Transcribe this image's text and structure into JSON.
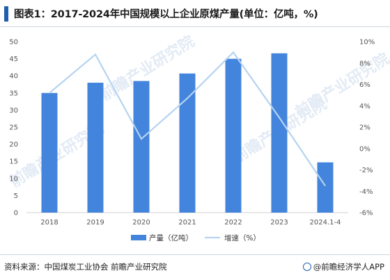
{
  "header": {
    "title": "图表1：2017-2024年中国规模以上企业原煤产量(单位：亿吨，%)"
  },
  "footer": {
    "source": "资料来源：中国煤炭工业协会 前瞻产业研究院",
    "credit": "@前瞻经济学人APP"
  },
  "watermark": {
    "text": "前瞻产业研究院"
  },
  "colors": {
    "bar": "#4384dd",
    "line": "#b5d3f0",
    "title_mark": "#1f5fae"
  },
  "chart_data": {
    "type": "bar",
    "title": "图表1：2017-2024年中国规模以上企业原煤产量(单位：亿吨，%)",
    "categories": [
      "2018",
      "2019",
      "2020",
      "2021",
      "2022",
      "2023",
      "2024.1-4"
    ],
    "series": [
      {
        "name": "产量（亿吨）",
        "type": "bar",
        "axis": "left",
        "values": [
          35.0,
          38.0,
          38.5,
          40.7,
          45.0,
          46.6,
          14.7
        ]
      },
      {
        "name": "增速（%）",
        "type": "line",
        "axis": "right",
        "values": [
          5.2,
          8.8,
          0.9,
          4.7,
          9.0,
          2.9,
          -3.5
        ]
      }
    ],
    "y_left": {
      "min": 0,
      "max": 50,
      "step": 5,
      "ticks": [
        "0",
        "5",
        "10",
        "15",
        "20",
        "25",
        "30",
        "35",
        "40",
        "45",
        "50"
      ]
    },
    "y_right": {
      "min": -6,
      "max": 10,
      "step": 2,
      "ticks": [
        "-6%",
        "-4%",
        "-2%",
        "0%",
        "2%",
        "4%",
        "6%",
        "8%",
        "10%"
      ]
    },
    "legend": {
      "position": "bottom"
    },
    "grid": false
  }
}
